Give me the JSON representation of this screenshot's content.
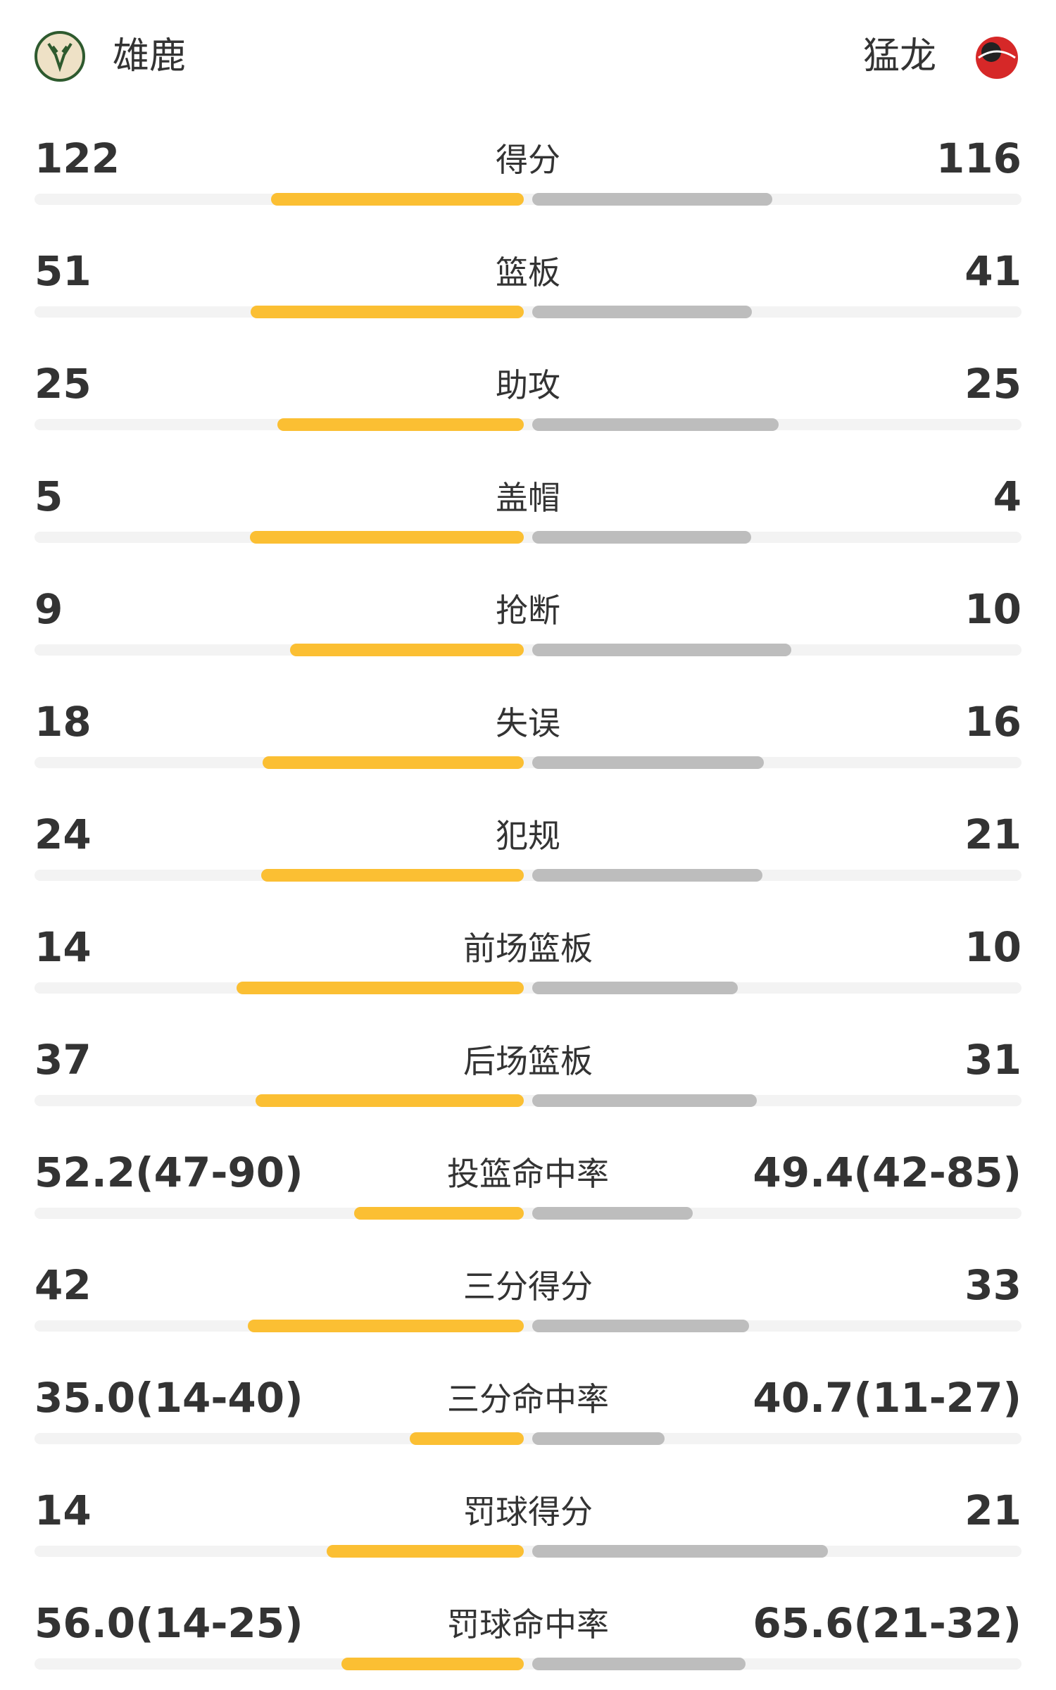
{
  "teams": {
    "home": "雄鹿",
    "away": "猛龙"
  },
  "rows": [
    {
      "label": "得分",
      "home": 122,
      "away": 116
    },
    {
      "label": "篮板",
      "home": 51,
      "away": 41
    },
    {
      "label": "助攻",
      "home": 25,
      "away": 25
    },
    {
      "label": "盖帽",
      "home": 5,
      "away": 4
    },
    {
      "label": "抢断",
      "home": 9,
      "away": 10
    },
    {
      "label": "失误",
      "home": 18,
      "away": 16
    },
    {
      "label": "犯规",
      "home": 24,
      "away": 21
    },
    {
      "label": "前场篮板",
      "home": 14,
      "away": 10
    },
    {
      "label": "后场篮板",
      "home": 37,
      "away": 31
    },
    {
      "label": "投篮命中率",
      "home": 52.2,
      "home_label": "52.2(47-90)",
      "away": 49.4,
      "away_label": "49.4(42-85)"
    },
    {
      "label": "三分得分",
      "home": 42,
      "away": 33
    },
    {
      "label": "三分命中率",
      "home": 35.0,
      "home_label": "35.0(14-40)",
      "away": 40.7,
      "away_label": "40.7(11-27)"
    },
    {
      "label": "罚球得分",
      "home": 14,
      "away": 21
    },
    {
      "label": "罚球命中率",
      "home": 56.0,
      "home_label": "56.0(14-25)",
      "away": 65.6,
      "away_label": "65.6(21-32)"
    }
  ]
}
